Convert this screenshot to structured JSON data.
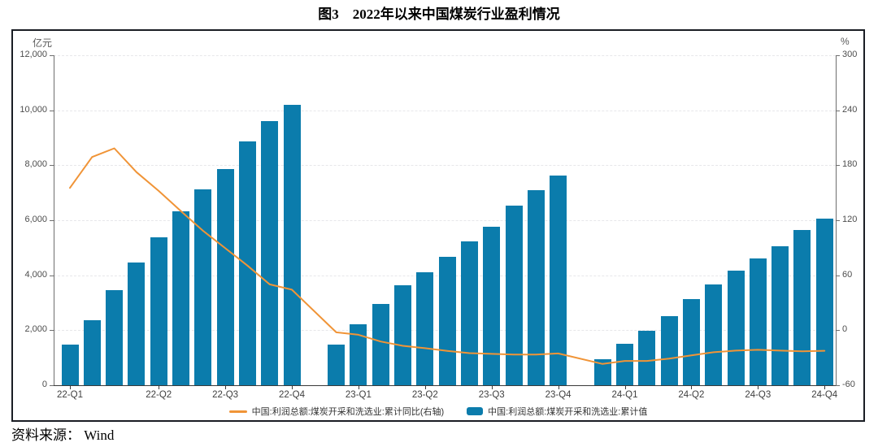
{
  "title": "图3　2022年以来中国煤炭行业盈利情况",
  "source": "资料来源： Wind",
  "colors": {
    "bar": "#0B7CAC",
    "line": "#F09437",
    "box_border": "#1A1D24",
    "grid": "#E7E7EA",
    "axis_line": "#6E6E6E",
    "tick_text": "#4D4D4D"
  },
  "chart_data": {
    "type": "bar+line",
    "title": "图3　2022年以来中国煤炭行业盈利情况",
    "categories": [
      "2022-02",
      "2022-03",
      "2022-04",
      "2022-05",
      "2022-06",
      "2022-07",
      "2022-08",
      "2022-09",
      "2022-10",
      "2022-11",
      "2022-12",
      "2023-01",
      "2023-02",
      "2023-03",
      "2023-04",
      "2023-05",
      "2023-06",
      "2023-07",
      "2023-08",
      "2023-09",
      "2023-10",
      "2023-11",
      "2023-12",
      "2024-01",
      "2024-02",
      "2024-03",
      "2024-04",
      "2024-05",
      "2024-06",
      "2024-07",
      "2024-08",
      "2024-09",
      "2024-10",
      "2024-11",
      "2024-12"
    ],
    "x_ticks": [
      {
        "index": 0,
        "label": "22-Q1"
      },
      {
        "index": 4,
        "label": "22-Q2"
      },
      {
        "index": 7,
        "label": "22-Q3"
      },
      {
        "index": 10,
        "label": "22-Q4"
      },
      {
        "index": 13,
        "label": "23-Q1"
      },
      {
        "index": 16,
        "label": "23-Q2"
      },
      {
        "index": 19,
        "label": "23-Q3"
      },
      {
        "index": 22,
        "label": "23-Q4"
      },
      {
        "index": 25,
        "label": "24-Q1"
      },
      {
        "index": 28,
        "label": "24-Q2"
      },
      {
        "index": 31,
        "label": "24-Q3"
      },
      {
        "index": 34,
        "label": "24-Q4"
      }
    ],
    "series": [
      {
        "name": "中国:利润总额:煤炭开采和洗选业:累计值",
        "type": "bar",
        "axis": "left",
        "color": "#0B7CAC",
        "values": [
          1480,
          2357,
          3466,
          4476,
          5381,
          6326,
          7113,
          7868,
          8858,
          9593,
          10202,
          null,
          1465,
          2229,
          2953,
          3646,
          4123,
          4663,
          5243,
          5775,
          6520,
          7102,
          7629,
          null,
          947,
          1500,
          1985,
          2516,
          3140,
          3670,
          4170,
          4615,
          5060,
          5655,
          6050
        ]
      },
      {
        "name": "中国:利润总额:煤炭开采和洗选业:累计同比(右轴)",
        "type": "line",
        "axis": "right",
        "color": "#F09437",
        "values": [
          155.3,
          189.0,
          198.5,
          172.5,
          152.0,
          130.0,
          108.5,
          89.5,
          70.5,
          50.0,
          44.3,
          null,
          -2.3,
          -4.9,
          -12.3,
          -17.0,
          -19.6,
          -22.5,
          -25.0,
          -25.8,
          -26.6,
          -26.5,
          -25.3,
          null,
          -36.8,
          -33.5,
          -33.5,
          -31.0,
          -27.5,
          -24.0,
          -22.2,
          -21.3,
          -22.2,
          -23.0,
          -22.4
        ]
      }
    ],
    "left_axis": {
      "unit": "亿元",
      "min": 0,
      "max": 12000,
      "tick_labels": [
        "12,000",
        "10,000",
        "8,000",
        "6,000",
        "4,000",
        "2,000",
        "0"
      ]
    },
    "right_axis": {
      "unit": "%",
      "min": -60,
      "max": 300,
      "tick_labels": [
        "300",
        "240",
        "180",
        "120",
        "60",
        "0",
        "-60"
      ]
    },
    "grid": "horizontal-dashed",
    "legend_position": "bottom-inside"
  }
}
